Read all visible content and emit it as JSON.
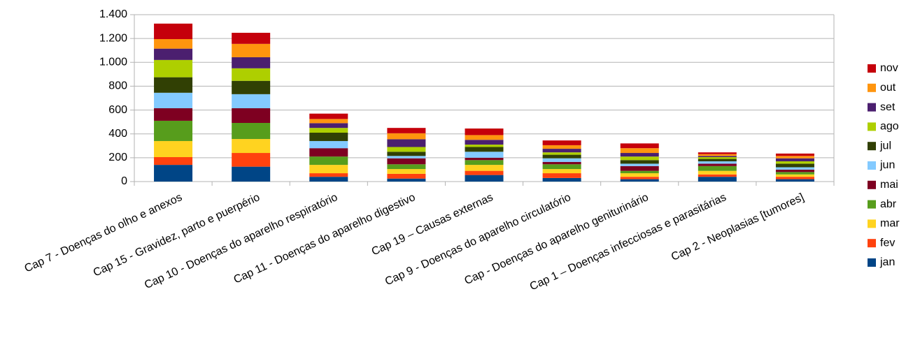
{
  "chart_data": {
    "type": "stacked_bar",
    "categories": [
      "Cap  7 - Doenças do olho e anexos",
      "Cap 15 - Gravidez, parto e puerpério",
      "Cap 10 - Doenças do aparelho respiratório",
      "Cap 11 - Doenças do aparelho digestivo",
      "Cap 19 – Causas externas",
      "Cap  9 - Doenças do aparelho circulatório",
      "Cap - Doenças do aparelho geniturinário",
      "Cap  1 – Doenças infecciosas e parasitárias",
      "Cap  2 - Neoplasias [tumores]"
    ],
    "series": [
      {
        "name": "jan",
        "color": "#004586",
        "values": [
          140,
          125,
          40,
          25,
          55,
          30,
          20,
          40,
          20
        ]
      },
      {
        "name": "fev",
        "color": "#ff420e",
        "values": [
          65,
          115,
          30,
          40,
          35,
          40,
          20,
          20,
          20
        ]
      },
      {
        "name": "mar",
        "color": "#ffd320",
        "values": [
          135,
          117,
          70,
          40,
          50,
          35,
          30,
          30,
          20
        ]
      },
      {
        "name": "abr",
        "color": "#579d1c",
        "values": [
          170,
          135,
          70,
          40,
          40,
          40,
          20,
          40,
          20
        ]
      },
      {
        "name": "mai",
        "color": "#7e0021",
        "values": [
          105,
          123,
          70,
          50,
          20,
          20,
          40,
          20,
          20
        ]
      },
      {
        "name": "jun",
        "color": "#83caff",
        "values": [
          130,
          118,
          60,
          20,
          50,
          30,
          20,
          20,
          20
        ]
      },
      {
        "name": "jul",
        "color": "#314004",
        "values": [
          130,
          112,
          70,
          35,
          40,
          30,
          30,
          20,
          30
        ]
      },
      {
        "name": "ago",
        "color": "#aecf00",
        "values": [
          145,
          105,
          40,
          40,
          20,
          20,
          30,
          15,
          20
        ]
      },
      {
        "name": "set",
        "color": "#4b1f6f",
        "values": [
          95,
          93,
          40,
          65,
          40,
          30,
          30,
          10,
          25
        ]
      },
      {
        "name": "out",
        "color": "#ff950e",
        "values": [
          80,
          112,
          35,
          50,
          40,
          30,
          40,
          15,
          20
        ]
      },
      {
        "name": "nov",
        "color": "#c5000b",
        "values": [
          130,
          93,
          45,
          45,
          55,
          40,
          40,
          15,
          20
        ]
      }
    ],
    "ylim": [
      0,
      1400
    ],
    "yticks": [
      0,
      200,
      400,
      600,
      800,
      {
        "value": 1000,
        "label": "1.000"
      },
      {
        "value": 1200,
        "label": "1.200"
      },
      {
        "value": 1400,
        "label": "1.400"
      }
    ],
    "grid": true,
    "legend": "right"
  }
}
